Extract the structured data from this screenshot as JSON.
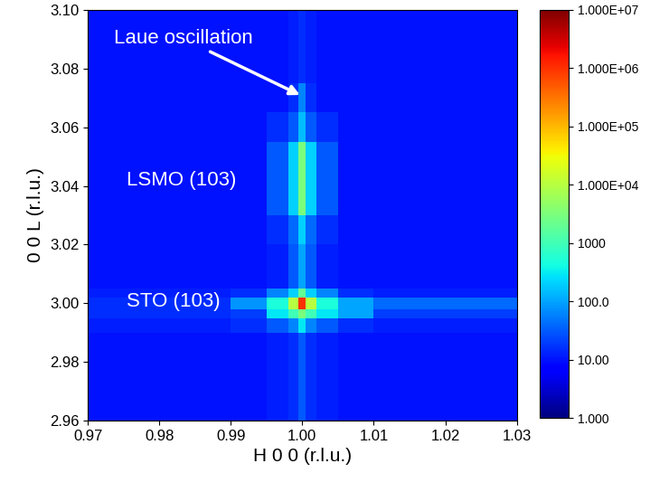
{
  "chart_data": {
    "type": "heatmap",
    "xlabel": "H 0 0 (r.l.u.)",
    "ylabel": "0 0 L (r.l.u.)",
    "annotations": [
      "Laue oscillation",
      "LSMO (103)",
      "STO (103)"
    ],
    "xlim": [
      0.97,
      1.03
    ],
    "ylim": [
      2.96,
      3.1
    ],
    "xticks": [
      {
        "value": 0.97,
        "label": "0.97"
      },
      {
        "value": 0.98,
        "label": "0.98"
      },
      {
        "value": 0.99,
        "label": "0.99"
      },
      {
        "value": 1.0,
        "label": "1.00"
      },
      {
        "value": 1.01,
        "label": "1.01"
      },
      {
        "value": 1.02,
        "label": "1.02"
      },
      {
        "value": 1.03,
        "label": "1.03"
      }
    ],
    "yticks": [
      {
        "value": 2.96,
        "label": "2.96"
      },
      {
        "value": 2.98,
        "label": "2.98"
      },
      {
        "value": 3.0,
        "label": "3.00"
      },
      {
        "value": 3.02,
        "label": "3.02"
      },
      {
        "value": 3.04,
        "label": "3.04"
      },
      {
        "value": 3.06,
        "label": "3.06"
      },
      {
        "value": 3.08,
        "label": "3.08"
      },
      {
        "value": 3.1,
        "label": "3.10"
      }
    ],
    "x_edges": [
      0.97,
      0.99,
      0.995,
      0.998,
      0.9995,
      1.0005,
      1.002,
      1.005,
      1.01,
      1.03
    ],
    "y_edges": [
      2.96,
      2.99,
      2.995,
      2.998,
      3.002,
      3.005,
      3.02,
      3.03,
      3.055,
      3.065,
      3.075,
      3.1
    ],
    "cells": [
      [
        10,
        10,
        12,
        15,
        30,
        15,
        12,
        10,
        10
      ],
      [
        12,
        15,
        30,
        60,
        300,
        60,
        30,
        15,
        12
      ],
      [
        15,
        20,
        300,
        1000,
        3000,
        1000,
        300,
        100,
        20
      ],
      [
        15,
        80,
        500,
        10000,
        1000000,
        10000,
        500,
        100,
        40
      ],
      [
        12,
        15,
        60,
        200,
        2000,
        200,
        60,
        15,
        12
      ],
      [
        10,
        10,
        12,
        30,
        100,
        30,
        12,
        10,
        10
      ],
      [
        10,
        10,
        15,
        40,
        200,
        40,
        15,
        10,
        10
      ],
      [
        10,
        10,
        30,
        200,
        3000,
        200,
        30,
        10,
        10
      ],
      [
        10,
        10,
        15,
        30,
        150,
        30,
        15,
        10,
        10
      ],
      [
        10,
        10,
        10,
        15,
        60,
        15,
        10,
        10,
        10
      ],
      [
        10,
        10,
        10,
        12,
        15,
        12,
        10,
        10,
        10
      ]
    ],
    "log": true,
    "colorbar": {
      "range": [
        1,
        10000000
      ],
      "ticks": [
        {
          "value": 1,
          "label": "1.000"
        },
        {
          "value": 10,
          "label": "10.00"
        },
        {
          "value": 100,
          "label": "100.0"
        },
        {
          "value": 1000,
          "label": "1000"
        },
        {
          "value": 10000,
          "label": "1.000E+04"
        },
        {
          "value": 100000,
          "label": "1.000E+05"
        },
        {
          "value": 1000000,
          "label": "1.000E+06"
        },
        {
          "value": 10000000,
          "label": "1.000E+07"
        }
      ]
    }
  }
}
